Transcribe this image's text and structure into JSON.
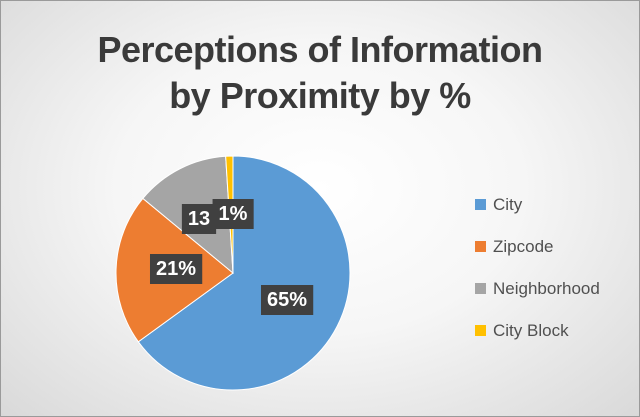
{
  "chart_data": {
    "type": "pie",
    "title_lines": [
      "Perceptions of Information",
      "by Proximity by %"
    ],
    "categories": [
      "City",
      "Zipcode",
      "Neighborhood",
      "City Block"
    ],
    "values": [
      65,
      21,
      13,
      1
    ],
    "data_labels": [
      "65%",
      "21%",
      "13",
      "1%"
    ],
    "colors": [
      "#5b9bd5",
      "#ed7d31",
      "#a5a5a5",
      "#ffc000"
    ],
    "legend_position": "right"
  }
}
